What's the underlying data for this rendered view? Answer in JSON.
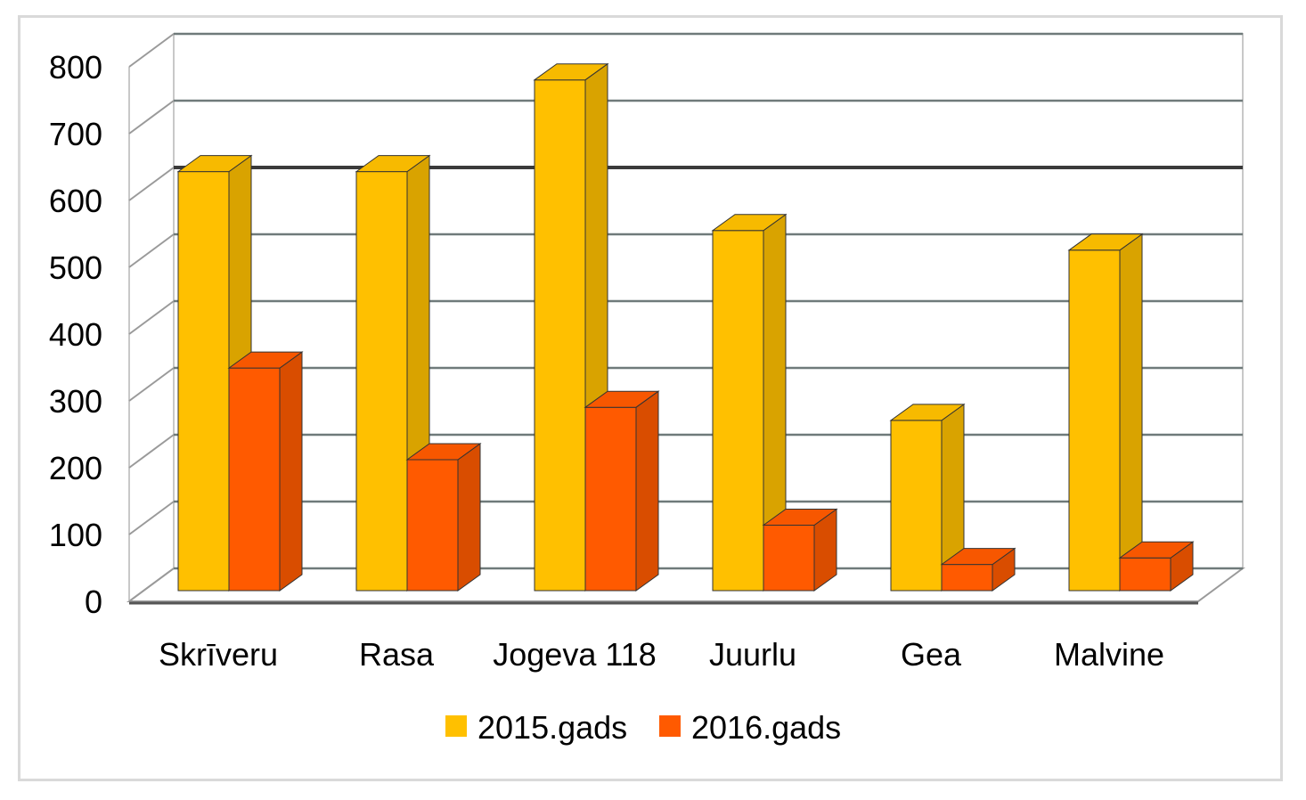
{
  "chart_data": {
    "type": "bar",
    "variant": "3d-clustered-column",
    "categories": [
      "Skrīveru",
      "Rasa",
      "Jogeva 118",
      "Juurlu",
      "Gea",
      "Malvine"
    ],
    "series": [
      {
        "name": "2015.gads",
        "values": [
          640,
          640,
          780,
          550,
          260,
          520
        ],
        "color": "#FFC000"
      },
      {
        "name": "2016.gads",
        "values": [
          340,
          200,
          280,
          100,
          40,
          50
        ],
        "color": "#FF5A00"
      }
    ],
    "ylim": [
      0,
      800
    ],
    "yticks": [
      0,
      100,
      200,
      300,
      400,
      500,
      600,
      700,
      800
    ],
    "grid": true,
    "legend": "bottom",
    "title": "",
    "xlabel": "",
    "ylabel": ""
  }
}
